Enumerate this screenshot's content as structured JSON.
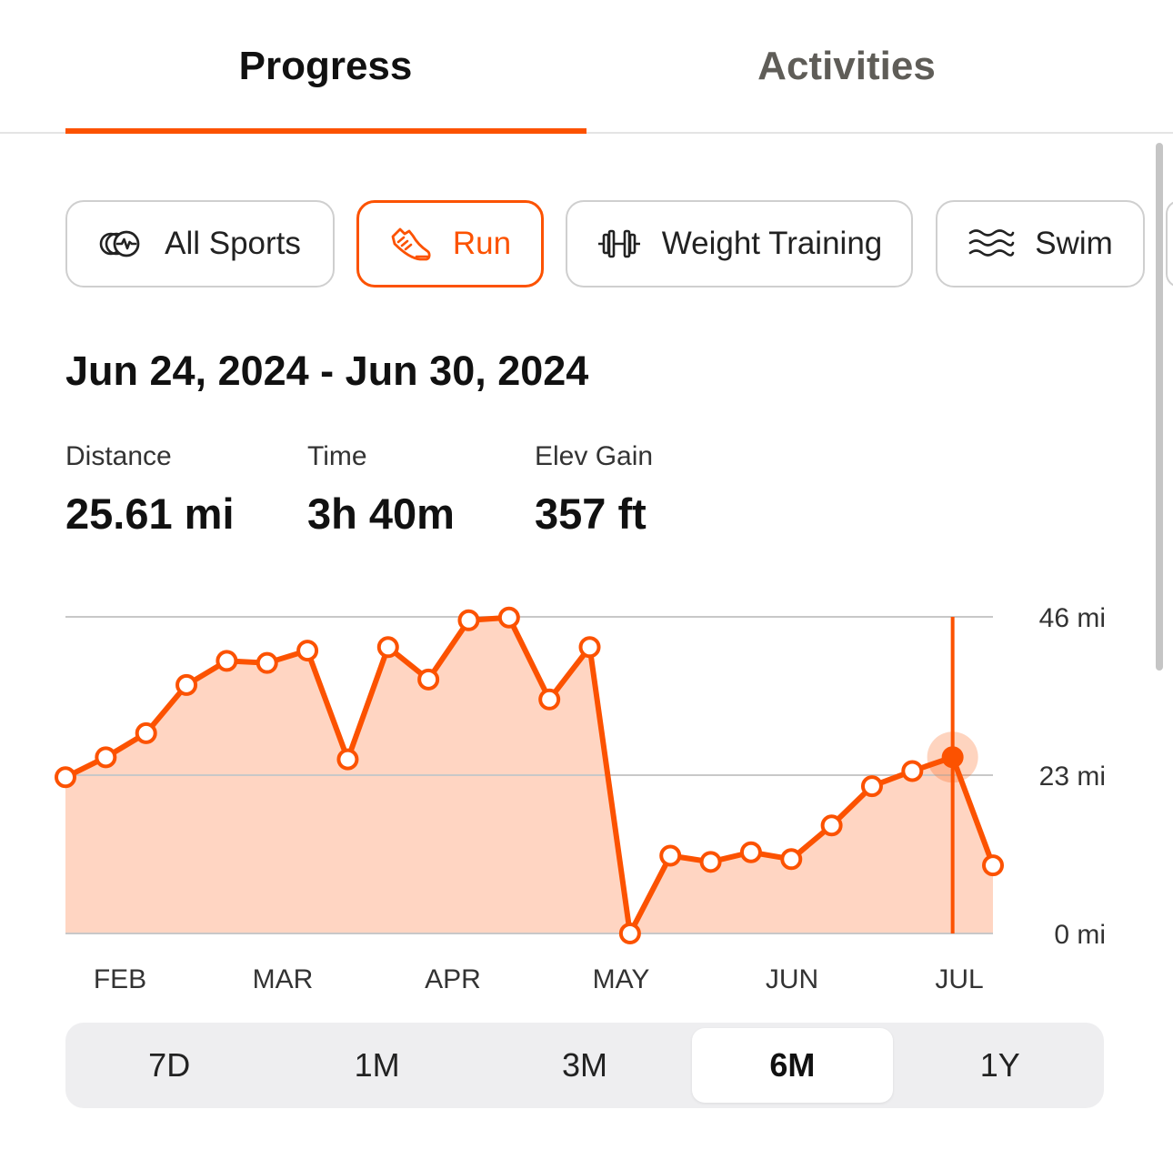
{
  "tabs": [
    {
      "label": "Progress",
      "active": true
    },
    {
      "label": "Activities",
      "active": false
    }
  ],
  "filters": {
    "all_sports": {
      "label": "All Sports",
      "icon": "all-sports-icon"
    },
    "run": {
      "label": "Run",
      "icon": "running-shoe-icon",
      "selected": true
    },
    "weight_training": {
      "label": "Weight Training",
      "icon": "dumbbell-icon"
    },
    "swim": {
      "label": "Swim",
      "icon": "waves-icon"
    }
  },
  "summary": {
    "date_range": "Jun 24, 2024 - Jun 30, 2024",
    "stats": [
      {
        "label": "Distance",
        "value": "25.61 mi"
      },
      {
        "label": "Time",
        "value": "3h 40m"
      },
      {
        "label": "Elev Gain",
        "value": "357 ft"
      }
    ]
  },
  "colors": {
    "accent": "#fc5200",
    "area_fill": "#ffd5c2",
    "grid": "#c8c8c8"
  },
  "chart_data": {
    "type": "area",
    "y_unit": "mi",
    "ylim": [
      0,
      46
    ],
    "y_ticks": [
      {
        "value": 0,
        "label": "0 mi"
      },
      {
        "value": 23,
        "label": "23 mi"
      },
      {
        "value": 46,
        "label": "46 mi"
      }
    ],
    "x_month_labels": [
      "FEB",
      "MAR",
      "APR",
      "MAY",
      "JUN",
      "JUL"
    ],
    "grid": true,
    "weekly_distance_mi": [
      22.7,
      25.6,
      29.1,
      36.1,
      39.6,
      39.3,
      41.1,
      25.3,
      41.6,
      36.9,
      45.5,
      45.9,
      34.0,
      41.6,
      0.0,
      11.3,
      10.4,
      11.8,
      10.8,
      15.7,
      21.4,
      23.6,
      25.61,
      9.9
    ],
    "selected_index": 22
  },
  "range_selector": {
    "options": [
      "7D",
      "1M",
      "3M",
      "6M",
      "1Y"
    ],
    "selected": "6M"
  }
}
